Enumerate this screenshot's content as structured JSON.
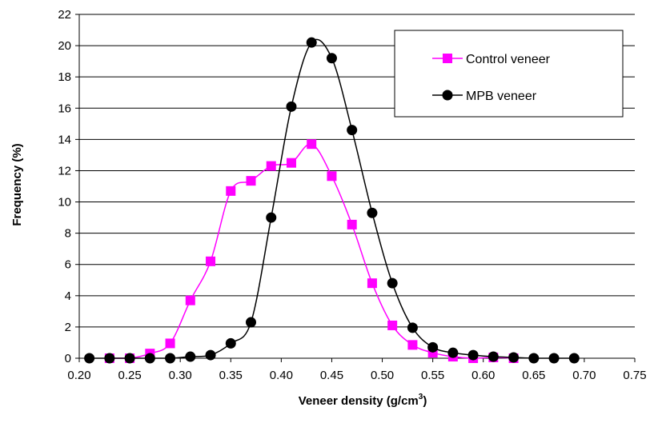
{
  "chart_data": {
    "type": "line",
    "xlabel": "Veneer density (g/cm",
    "xlabel_sup": "3",
    "xlabel_end": ")",
    "ylabel": "Frequency (%)",
    "xlim": [
      0.2,
      0.75
    ],
    "ylim": [
      0,
      22
    ],
    "x_ticks": [
      0.2,
      0.25,
      0.3,
      0.35,
      0.4,
      0.45,
      0.5,
      0.55,
      0.6,
      0.65,
      0.7,
      0.75
    ],
    "x_tick_labels": [
      "0.20",
      "0.25",
      "0.30",
      "0.35",
      "0.40",
      "0.45",
      "0.50",
      "0.55",
      "0.60",
      "0.65",
      "0.70",
      "0.75"
    ],
    "y_ticks": [
      0,
      2,
      4,
      6,
      8,
      10,
      12,
      14,
      16,
      18,
      20,
      22
    ],
    "y_tick_labels": [
      "0",
      "2",
      "4",
      "6",
      "8",
      "10",
      "12",
      "14",
      "16",
      "18",
      "20",
      "22"
    ],
    "grid": "horizontal",
    "legend_position": "top-right",
    "series": [
      {
        "name": "Control veneer",
        "color": "#ff00ff",
        "marker": "square",
        "points": [
          [
            0.23,
            0.0
          ],
          [
            0.25,
            0.0
          ],
          [
            0.27,
            0.3
          ],
          [
            0.29,
            0.95
          ],
          [
            0.31,
            3.7
          ],
          [
            0.33,
            6.2
          ],
          [
            0.35,
            10.7
          ],
          [
            0.37,
            11.35
          ],
          [
            0.39,
            12.3
          ],
          [
            0.41,
            12.5
          ],
          [
            0.43,
            13.7
          ],
          [
            0.45,
            11.65
          ],
          [
            0.47,
            8.55
          ],
          [
            0.49,
            4.8
          ],
          [
            0.51,
            2.1
          ],
          [
            0.53,
            0.85
          ],
          [
            0.55,
            0.35
          ],
          [
            0.57,
            0.1
          ],
          [
            0.59,
            0.0
          ],
          [
            0.61,
            0.05
          ],
          [
            0.63,
            0.0
          ]
        ]
      },
      {
        "name": "MPB veneer",
        "color": "#000000",
        "marker": "circle",
        "points": [
          [
            0.21,
            0.0
          ],
          [
            0.23,
            0.0
          ],
          [
            0.25,
            0.0
          ],
          [
            0.27,
            0.0
          ],
          [
            0.29,
            0.0
          ],
          [
            0.31,
            0.1
          ],
          [
            0.33,
            0.2
          ],
          [
            0.35,
            0.95
          ],
          [
            0.37,
            2.3
          ],
          [
            0.39,
            9.0
          ],
          [
            0.41,
            16.1
          ],
          [
            0.43,
            20.2
          ],
          [
            0.45,
            19.2
          ],
          [
            0.47,
            14.6
          ],
          [
            0.49,
            9.3
          ],
          [
            0.51,
            4.8
          ],
          [
            0.53,
            1.95
          ],
          [
            0.55,
            0.7
          ],
          [
            0.57,
            0.35
          ],
          [
            0.59,
            0.2
          ],
          [
            0.61,
            0.1
          ],
          [
            0.63,
            0.05
          ],
          [
            0.65,
            0.0
          ],
          [
            0.67,
            0.0
          ],
          [
            0.69,
            0.0
          ]
        ]
      }
    ]
  }
}
